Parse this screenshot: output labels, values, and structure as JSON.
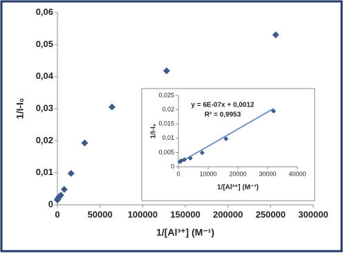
{
  "chart_data": [
    {
      "type": "scatter",
      "x_label": "1/[Al³⁺]  (M⁻¹)",
      "y_label": "1/I-I₀",
      "color": "#3d5a8a",
      "x": [
        0,
        500,
        1000,
        2000,
        4000,
        8000,
        16000,
        32000,
        64000,
        128000,
        256000
      ],
      "values": [
        0.0015,
        0.0018,
        0.0021,
        0.0025,
        0.003,
        0.0048,
        0.0098,
        0.0193,
        0.0305,
        0.0418,
        0.053
      ],
      "xlim": [
        0,
        300000
      ],
      "xticks": [
        0,
        50000,
        100000,
        150000,
        200000,
        250000,
        300000
      ],
      "ylim": [
        0,
        0.06
      ],
      "yticks": [
        0,
        {
          "value": 0.01,
          "label": "0,01"
        },
        {
          "value": 0.02,
          "label": "0,02"
        },
        {
          "value": 0.03,
          "label": "0,03"
        },
        {
          "value": 0.04,
          "label": "0,04"
        },
        {
          "value": 0.05,
          "label": "0,05"
        },
        {
          "value": 0.06,
          "label": "0,06"
        }
      ],
      "grid": false
    },
    {
      "type": "scatter",
      "x_label": "1/[Al³⁺]  (M⁻¹)",
      "y_label": "1/I-I₀",
      "color": "#3d5a8a",
      "x": [
        500,
        1000,
        2000,
        4000,
        8000,
        16000,
        32000
      ],
      "values": [
        0.0018,
        0.0021,
        0.0025,
        0.003,
        0.0049,
        0.0098,
        0.0195
      ],
      "trendline": {
        "color": "#6f93c4",
        "x": [
          500,
          32000
        ],
        "values": [
          0.0015,
          0.0204
        ]
      },
      "annotations": [
        "y = 6E-07x + 0,0012",
        "R² = 0,9953"
      ],
      "xlim": [
        0,
        40000
      ],
      "xticks": [
        0,
        10000,
        20000,
        30000,
        40000
      ],
      "ylim": [
        0,
        0.025
      ],
      "yticks": [
        0,
        {
          "value": 0.005,
          "label": "0,005"
        },
        {
          "value": 0.01,
          "label": "0,01"
        },
        {
          "value": 0.015,
          "label": "0,015"
        },
        {
          "value": 0.02,
          "label": "0,02"
        },
        {
          "value": 0.025,
          "label": "0,025"
        }
      ],
      "grid": false
    }
  ]
}
